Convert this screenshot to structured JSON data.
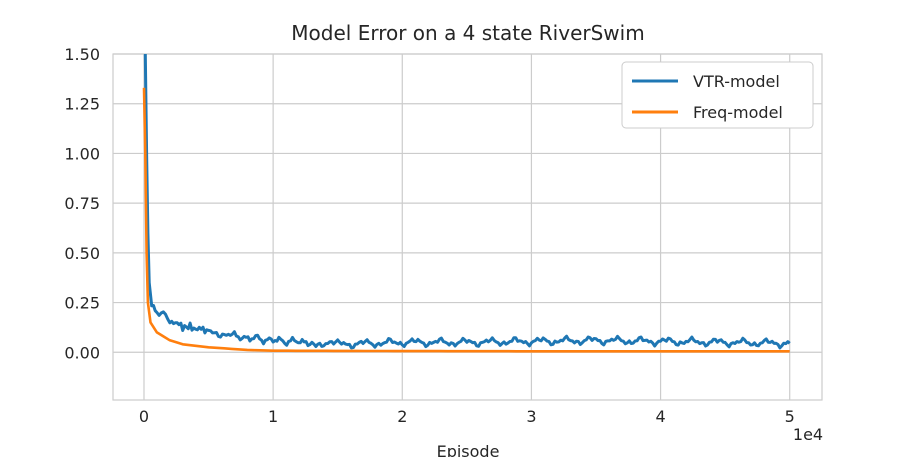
{
  "chart_data": {
    "type": "line",
    "title": "Model Error on a 4 state RiverSwim",
    "xlabel": "Episode",
    "ylabel": "",
    "x_scale_label": "1e4",
    "xlim": [
      -2400,
      52500
    ],
    "ylim": [
      -0.24,
      1.5
    ],
    "xticks": [
      0,
      10000,
      20000,
      30000,
      40000,
      50000
    ],
    "xtick_labels": [
      "0",
      "1",
      "2",
      "3",
      "4",
      "5"
    ],
    "yticks": [
      0,
      0.25,
      0.5,
      0.75,
      1.0,
      1.25,
      1.5
    ],
    "ytick_labels": [
      "0.00",
      "0.25",
      "0.50",
      "0.75",
      "1.00",
      "1.25",
      "1.50"
    ],
    "grid": true,
    "legend": "top-right",
    "series": [
      {
        "name": "VTR-model",
        "color": "#1f77b4",
        "x": [
          0,
          100,
          200,
          300,
          400,
          600,
          1000,
          1500,
          2000,
          3000,
          4000,
          5000,
          7000,
          10000,
          13000,
          15000,
          20000,
          25000,
          30000,
          35000,
          40000,
          45000,
          50000
        ],
        "values": [
          1.6,
          1.5,
          1.0,
          0.6,
          0.35,
          0.22,
          0.2,
          0.2,
          0.16,
          0.13,
          0.12,
          0.11,
          0.08,
          0.06,
          0.05,
          0.04,
          0.05,
          0.05,
          0.055,
          0.06,
          0.055,
          0.05,
          0.045
        ]
      },
      {
        "name": "Freq-model",
        "color": "#ff7f0e",
        "x": [
          0,
          100,
          200,
          300,
          500,
          1000,
          2000,
          3000,
          5000,
          8000,
          10000,
          20000,
          30000,
          40000,
          50000
        ],
        "values": [
          1.33,
          1.0,
          0.5,
          0.25,
          0.15,
          0.1,
          0.06,
          0.04,
          0.025,
          0.012,
          0.008,
          0.006,
          0.005,
          0.005,
          0.005
        ]
      }
    ]
  }
}
